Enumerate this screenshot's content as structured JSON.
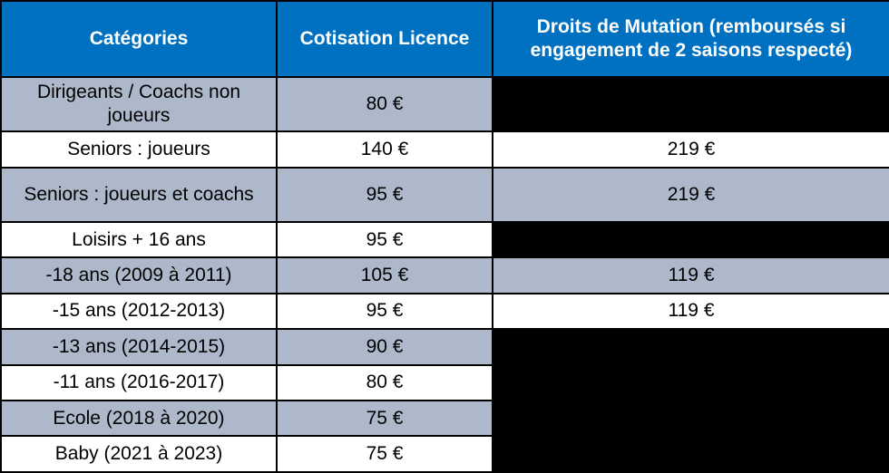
{
  "table": {
    "header": [
      "Catégories",
      "Cotisation Licence",
      "Droits de Mutation (remboursés si engagement de 2 saisons respecté)"
    ],
    "rows": [
      [
        "Dirigeants / Coachs non joueurs",
        "80 €",
        null
      ],
      [
        "Seniors : joueurs",
        "140 €",
        "219 €"
      ],
      [
        "Seniors : joueurs et coachs",
        "95 €",
        "219 €"
      ],
      [
        "Loisirs + 16 ans",
        "95 €",
        null
      ],
      [
        "-18 ans (2009 à 2011)",
        "105 €",
        "119 €"
      ],
      [
        "-15 ans (2012-2013)",
        "95 €",
        "119 €"
      ],
      [
        "-13 ans (2014-2015)",
        "90 €",
        null
      ],
      [
        "-11 ans (2016-2017)",
        "80 €",
        null
      ],
      [
        "Ecole (2018 à 2020)",
        "75 €",
        null
      ],
      [
        "Baby (2021 à 2023)",
        "75 €",
        null
      ]
    ]
  }
}
